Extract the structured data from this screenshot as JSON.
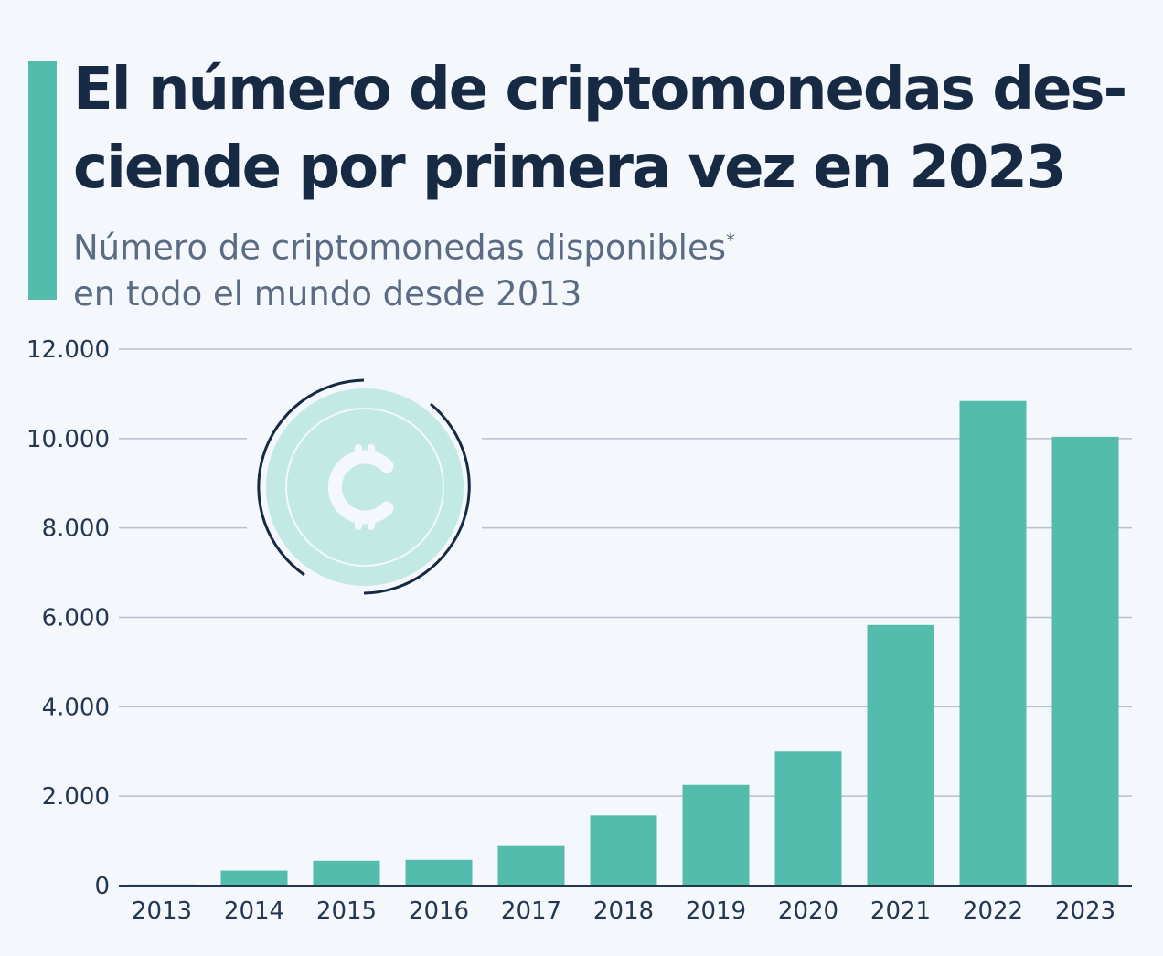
{
  "chart_data": {
    "type": "bar",
    "title": "El número de criptomonedas des- ciende por primera vez en 2023",
    "subtitle_line1": "Número de criptomonedas disponibles",
    "subtitle_mark": "*",
    "subtitle_line2": "en todo el mundo desde 2013",
    "categories": [
      "2013",
      "2014",
      "2015",
      "2016",
      "2017",
      "2018",
      "2019",
      "2020",
      "2021",
      "2022",
      "2023"
    ],
    "values": [
      25,
      336,
      556,
      577,
      886,
      1567,
      2254,
      3000,
      5830,
      10840,
      10040
    ],
    "ylim": [
      0,
      12000
    ],
    "yticks": [
      0,
      2000,
      4000,
      6000,
      8000,
      10000,
      12000
    ],
    "ytick_labels": [
      "0",
      "2.000",
      "4.000",
      "6.000",
      "8.000",
      "10.000",
      "12.000"
    ],
    "xlabel": "",
    "ylabel": "",
    "grid": true,
    "colors": {
      "bar": "#54bcad",
      "accent": "#54bcad",
      "title": "#172a43",
      "coin": "#c3e9e5"
    },
    "decoration_icon": "crypto-coin-icon"
  }
}
